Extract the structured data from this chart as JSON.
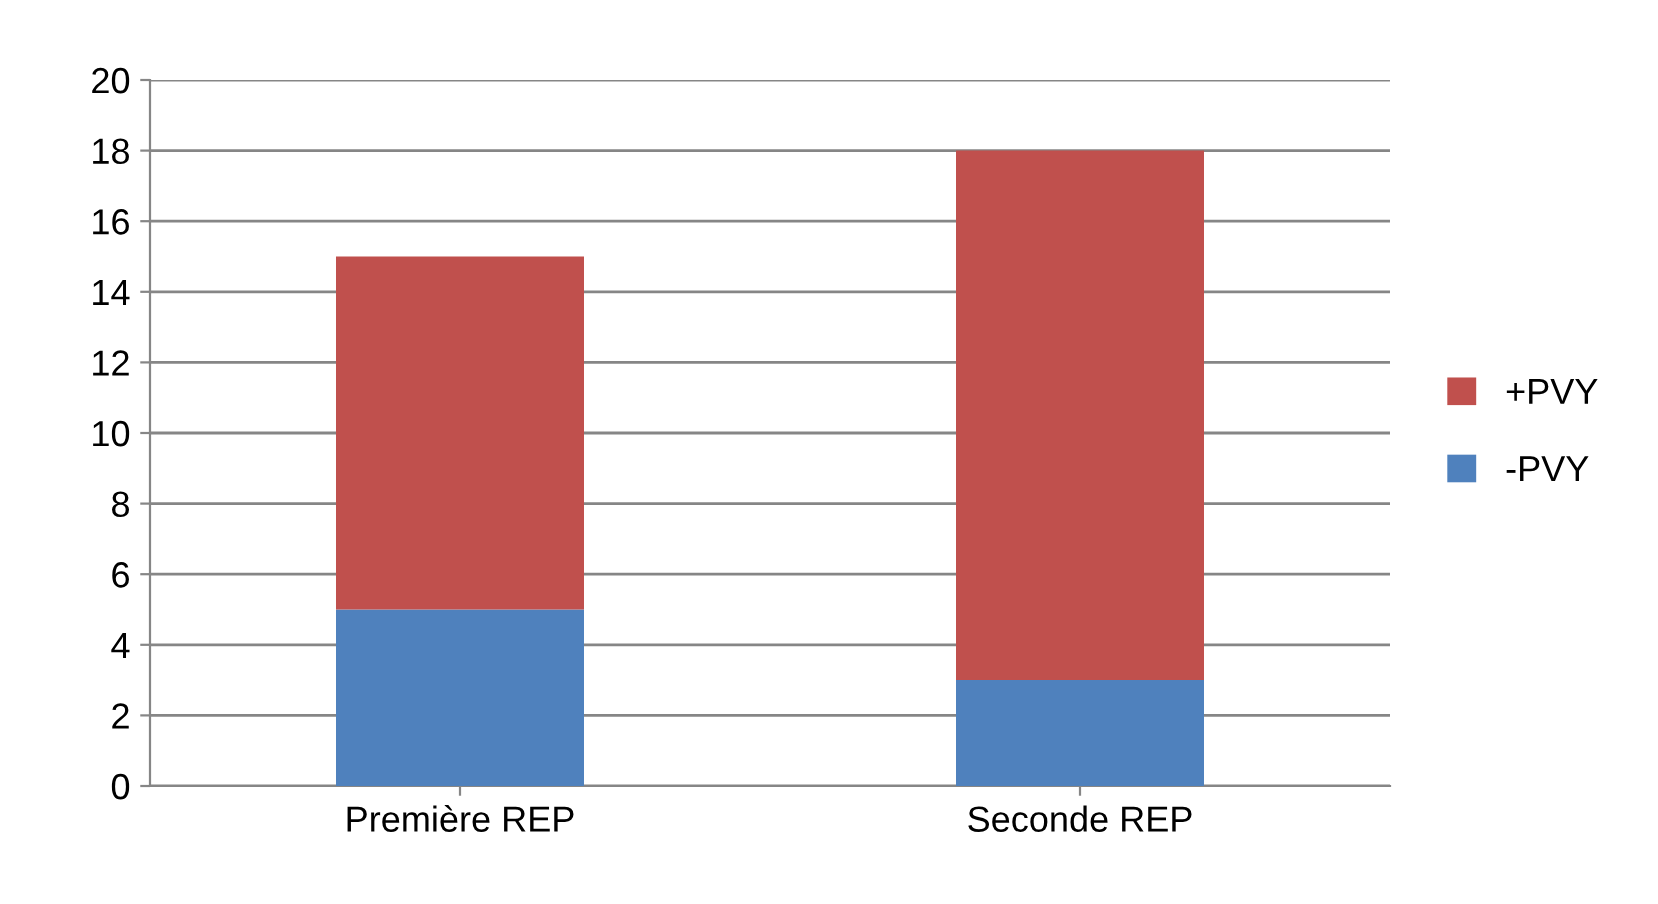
{
  "chart_data": {
    "type": "bar",
    "stacked": true,
    "categories": [
      "Première REP",
      "Seconde REP"
    ],
    "series": [
      {
        "name": "-PVY",
        "color": "#4f81bd",
        "values": [
          5,
          3
        ]
      },
      {
        "name": "+PVY",
        "color": "#c0504d",
        "values": [
          10,
          15
        ]
      }
    ],
    "ylim": [
      0,
      20
    ],
    "yticks": [
      0,
      2,
      4,
      6,
      8,
      10,
      12,
      14,
      16,
      18,
      20
    ],
    "grid": "y",
    "legend": "right"
  }
}
